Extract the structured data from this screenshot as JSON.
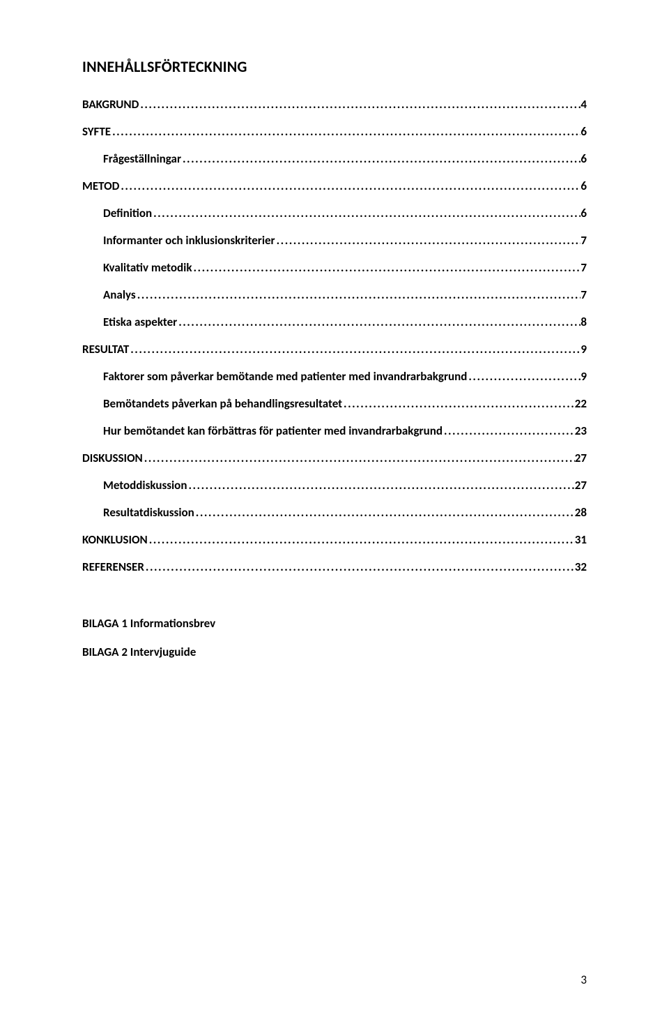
{
  "title": "INNEHÅLLSFÖRTECKNING",
  "toc": [
    {
      "label": "BAKGRUND",
      "page": "4",
      "level": 0
    },
    {
      "label": "SYFTE",
      "page": "6",
      "level": 0
    },
    {
      "label": "Frågeställningar",
      "page": "6",
      "level": 1
    },
    {
      "label": "METOD",
      "page": "6",
      "level": 0
    },
    {
      "label": "Definition",
      "page": "6",
      "level": 1
    },
    {
      "label": "Informanter och inklusionskriterier",
      "page": "7",
      "level": 1
    },
    {
      "label": "Kvalitativ metodik",
      "page": "7",
      "level": 1
    },
    {
      "label": "Analys",
      "page": "7",
      "level": 1
    },
    {
      "label": "Etiska aspekter",
      "page": "8",
      "level": 1
    },
    {
      "label": "RESULTAT",
      "page": "9",
      "level": 0
    },
    {
      "label": "Faktorer som påverkar bemötande med patienter med invandrarbakgrund",
      "page": "9",
      "level": 1
    },
    {
      "label": "Bemötandets påverkan på behandlingsresultatet",
      "page": "22",
      "level": 1
    },
    {
      "label": "Hur bemötandet kan förbättras för patienter med invandrarbakgrund",
      "page": "23",
      "level": 1
    },
    {
      "label": "DISKUSSION",
      "page": "27",
      "level": 0
    },
    {
      "label": "Metoddiskussion",
      "page": "27",
      "level": 1
    },
    {
      "label": "Resultatdiskussion",
      "page": "28",
      "level": 1
    },
    {
      "label": "KONKLUSION",
      "page": "31",
      "level": 0
    },
    {
      "label": "REFERENSER",
      "page": "32",
      "level": 0
    }
  ],
  "appendix": [
    "BILAGA 1 Informationsbrev",
    "BILAGA 2 Intervjuguide"
  ],
  "pageNumber": "3",
  "colors": {
    "text": "#000000",
    "background": "#ffffff"
  },
  "typography": {
    "titleSize": 22,
    "entrySize": 17,
    "fontFamily": "Calibri"
  }
}
